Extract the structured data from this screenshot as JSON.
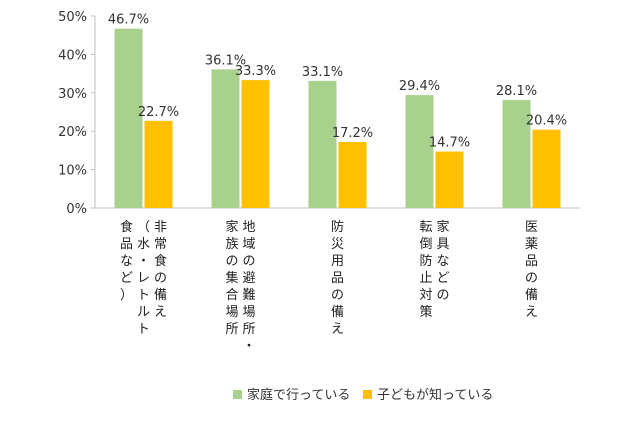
{
  "chart_data": {
    "type": "bar",
    "categories": [
      "非常食の備え（水・レトルト食品など）",
      "地域の避難場所・家族の集合場所",
      "防災用品の備え",
      "家具などの転倒防止対策",
      "医薬品の備え"
    ],
    "category_lines": [
      [
        "非常食の備え",
        "（水・レトルト",
        "食品など）"
      ],
      [
        "地域の避難場所・",
        "家族の集合場所"
      ],
      [
        "防災用品の備え"
      ],
      [
        "家具などの",
        "転倒防止対策"
      ],
      [
        "医薬品の備え"
      ]
    ],
    "series": [
      {
        "name": "家庭で行っている",
        "values": [
          46.7,
          36.1,
          33.1,
          29.4,
          28.1
        ],
        "labels": [
          "46.7%",
          "36.1%",
          "33.1%",
          "29.4%",
          "28.1%"
        ],
        "color": "#A9D18E"
      },
      {
        "name": "子どもが知っている",
        "values": [
          22.7,
          33.3,
          17.2,
          14.7,
          20.4
        ],
        "labels": [
          "22.7%",
          "33.3%",
          "17.2%",
          "14.7%",
          "20.4%"
        ],
        "color": "#FFC000"
      }
    ],
    "ylim": [
      0,
      50
    ],
    "yticks": [
      "0%",
      "10%",
      "20%",
      "30%",
      "40%",
      "50%"
    ],
    "ytick_values": [
      0,
      10,
      20,
      30,
      40,
      50
    ],
    "grid": false,
    "legend_position": "bottom"
  }
}
